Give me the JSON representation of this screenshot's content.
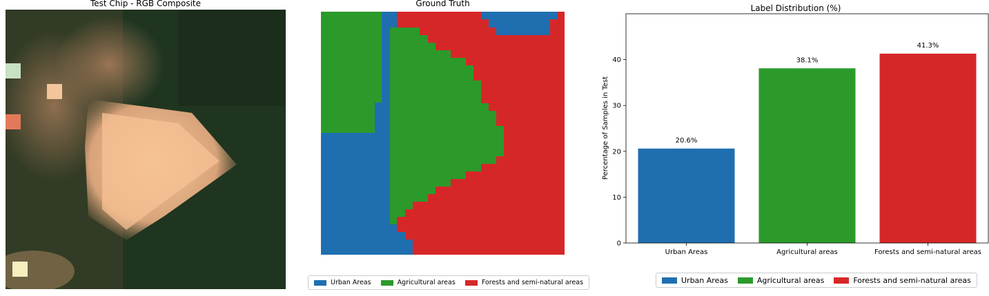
{
  "panels": {
    "rgb": {
      "title": "Test Chip - RGB Composite"
    },
    "ground_truth": {
      "title": "Ground Truth"
    }
  },
  "colors": {
    "urban": "#1f6fb0",
    "agricultural": "#2b9a2b",
    "forest": "#d62728"
  },
  "legend": {
    "items": [
      {
        "label": "Urban Areas",
        "color": "#1f6fb0"
      },
      {
        "label": "Agricultural areas",
        "color": "#2b9a2b"
      },
      {
        "label": "Forests and semi-natural areas",
        "color": "#d62728"
      }
    ]
  },
  "chart_data": {
    "type": "bar",
    "title": "Label Distribution (%)",
    "xlabel": "",
    "ylabel": "Percentage of Samples in Test",
    "categories": [
      "Urban Areas",
      "Agricultural areas",
      "Forests and semi-natural areas"
    ],
    "values": [
      20.6,
      38.1,
      41.3
    ],
    "data_labels": [
      "20.6%",
      "38.1%",
      "41.3%"
    ],
    "colors": [
      "#1f6fb0",
      "#2b9a2b",
      "#d62728"
    ],
    "ylim": [
      0,
      50
    ],
    "yticks": [
      0,
      10,
      20,
      30,
      40
    ],
    "grid": false,
    "legend_position": "bottom"
  }
}
